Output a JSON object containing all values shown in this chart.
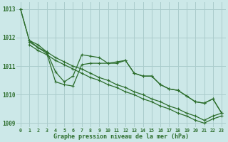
{
  "background_color": "#cce8e8",
  "grid_color": "#aacccc",
  "line_color": "#2d6e2d",
  "xlabel": "Graphe pression niveau de la mer (hPa)",
  "xlabel_color": "#2d6e2d",
  "ylim": [
    1008.85,
    1013.25
  ],
  "xlim": [
    -0.5,
    23.5
  ],
  "yticks": [
    1009,
    1010,
    1011,
    1012,
    1013
  ],
  "xtick_labels": [
    "0",
    "1",
    "2",
    "3",
    "4",
    "5",
    "6",
    "7",
    "8",
    "9",
    "10",
    "11",
    "12",
    "13",
    "14",
    "15",
    "16",
    "17",
    "18",
    "19",
    "20",
    "21",
    "22",
    "23"
  ],
  "series_jagged1": {
    "x": [
      0,
      1,
      2,
      3,
      4,
      5,
      6,
      7,
      8,
      9,
      10,
      11,
      12,
      13,
      14,
      15,
      16,
      17,
      18,
      19,
      20,
      21,
      22,
      23
    ],
    "y": [
      1013.0,
      1011.9,
      1011.75,
      1011.5,
      1010.8,
      1010.45,
      1010.65,
      1011.4,
      1011.35,
      1011.3,
      1011.1,
      1011.15,
      1011.2,
      1010.75,
      1010.65,
      1010.65,
      1010.35,
      1010.2,
      1010.15,
      1009.95,
      1009.75,
      1009.7,
      1009.85,
      1009.35
    ]
  },
  "series_jagged2": {
    "x": [
      0,
      1,
      2,
      3,
      4,
      5,
      6,
      7,
      8,
      9,
      10,
      11,
      12,
      13,
      14,
      15,
      16,
      17,
      18,
      19,
      20,
      21,
      22,
      23
    ],
    "y": [
      1013.0,
      1011.9,
      1011.65,
      1011.45,
      1010.45,
      1010.35,
      1010.3,
      1011.05,
      1011.1,
      1011.1,
      1011.1,
      1011.1,
      1011.2,
      1010.75,
      1010.65,
      1010.65,
      1010.35,
      1010.2,
      1010.15,
      1009.95,
      1009.75,
      1009.7,
      1009.85,
      1009.35
    ]
  },
  "series_linear1": {
    "x": [
      1,
      2,
      3,
      4,
      5,
      6,
      7,
      8,
      9,
      10,
      11,
      12,
      13,
      14,
      15,
      16,
      17,
      18,
      19,
      20,
      21,
      22,
      23
    ],
    "y": [
      1011.85,
      1011.65,
      1011.5,
      1011.3,
      1011.15,
      1011.0,
      1010.9,
      1010.75,
      1010.6,
      1010.5,
      1010.35,
      1010.25,
      1010.1,
      1010.0,
      1009.85,
      1009.75,
      1009.6,
      1009.5,
      1009.35,
      1009.25,
      1009.1,
      1009.25,
      1009.35
    ]
  },
  "series_linear2": {
    "x": [
      1,
      2,
      3,
      4,
      5,
      6,
      7,
      8,
      9,
      10,
      11,
      12,
      13,
      14,
      15,
      16,
      17,
      18,
      19,
      20,
      21,
      22,
      23
    ],
    "y": [
      1011.75,
      1011.55,
      1011.4,
      1011.2,
      1011.05,
      1010.9,
      1010.75,
      1010.6,
      1010.5,
      1010.35,
      1010.25,
      1010.1,
      1010.0,
      1009.85,
      1009.75,
      1009.6,
      1009.5,
      1009.35,
      1009.25,
      1009.1,
      1009.0,
      1009.15,
      1009.25
    ]
  }
}
